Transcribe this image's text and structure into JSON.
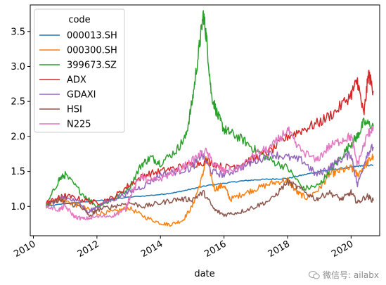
{
  "chart_data": {
    "type": "line",
    "xlabel": "date",
    "legend_title": "code",
    "legend_position": "top-left",
    "grid": false,
    "xlim": [
      2009.9,
      2020.9
    ],
    "ylim": [
      0.58,
      3.88
    ],
    "x_ticks": [
      {
        "value": 2010,
        "label": "2010"
      },
      {
        "value": 2012,
        "label": "2012"
      },
      {
        "value": 2014,
        "label": "2014"
      },
      {
        "value": 2016,
        "label": "2016"
      },
      {
        "value": 2018,
        "label": "2018"
      },
      {
        "value": 2020,
        "label": "2020"
      }
    ],
    "y_ticks": [
      {
        "value": 1.0,
        "label": "1.0"
      },
      {
        "value": 1.5,
        "label": "1.5"
      },
      {
        "value": 2.0,
        "label": "2.0"
      },
      {
        "value": 2.5,
        "label": "2.5"
      },
      {
        "value": 3.0,
        "label": "3.0"
      },
      {
        "value": 3.5,
        "label": "3.5"
      }
    ],
    "series": [
      {
        "name": "000013.SH",
        "color": "#1f77b4",
        "x": [
          2010.4,
          2011.0,
          2012.0,
          2013.0,
          2014.0,
          2014.5,
          2015.0,
          2015.5,
          2016.0,
          2016.5,
          2017.0,
          2017.5,
          2018.0,
          2018.5,
          2019.0,
          2019.5,
          2020.0,
          2020.3,
          2020.7
        ],
        "y": [
          1.0,
          1.04,
          1.08,
          1.13,
          1.17,
          1.2,
          1.25,
          1.3,
          1.33,
          1.36,
          1.38,
          1.39,
          1.4,
          1.45,
          1.5,
          1.53,
          1.56,
          1.58,
          1.59
        ]
      },
      {
        "name": "000300.SH",
        "color": "#ff7f0e",
        "x": [
          2010.4,
          2010.8,
          2011.0,
          2011.5,
          2012.0,
          2012.5,
          2013.0,
          2013.5,
          2014.0,
          2014.3,
          2014.7,
          2015.0,
          2015.3,
          2015.45,
          2015.7,
          2016.0,
          2016.2,
          2016.6,
          2017.0,
          2017.5,
          2018.0,
          2018.3,
          2018.6,
          2019.0,
          2019.3,
          2019.6,
          2020.0,
          2020.2,
          2020.5,
          2020.7
        ],
        "y": [
          1.0,
          1.12,
          1.08,
          1.0,
          0.9,
          0.92,
          0.98,
          0.85,
          0.76,
          0.74,
          0.8,
          1.0,
          1.4,
          1.7,
          1.25,
          1.3,
          1.1,
          1.18,
          1.25,
          1.33,
          1.38,
          1.2,
          1.12,
          1.25,
          1.45,
          1.5,
          1.55,
          1.45,
          1.62,
          1.72
        ]
      },
      {
        "name": "399673.SZ",
        "color": "#2ca02c",
        "x": [
          2010.4,
          2010.8,
          2011.0,
          2011.5,
          2012.0,
          2012.5,
          2013.0,
          2013.4,
          2013.7,
          2014.0,
          2014.5,
          2014.8,
          2015.0,
          2015.2,
          2015.35,
          2015.45,
          2015.6,
          2015.8,
          2016.0,
          2016.2,
          2016.6,
          2017.0,
          2017.5,
          2018.0,
          2018.5,
          2019.0,
          2019.3,
          2019.6,
          2020.0,
          2020.2,
          2020.4,
          2020.7
        ],
        "y": [
          1.0,
          1.38,
          1.45,
          1.2,
          1.0,
          1.1,
          1.25,
          1.6,
          1.7,
          1.62,
          1.8,
          2.0,
          2.5,
          3.2,
          3.75,
          3.4,
          2.6,
          2.3,
          2.1,
          2.05,
          1.95,
          1.8,
          1.65,
          1.55,
          1.25,
          1.3,
          1.5,
          1.65,
          1.9,
          2.0,
          2.2,
          2.15
        ]
      },
      {
        "name": "ADX",
        "color": "#d62728",
        "x": [
          2010.4,
          2010.8,
          2011.0,
          2011.5,
          2012.0,
          2012.5,
          2013.0,
          2013.5,
          2014.0,
          2014.5,
          2015.0,
          2015.5,
          2016.0,
          2016.5,
          2017.0,
          2017.5,
          2018.0,
          2018.5,
          2019.0,
          2019.5,
          2020.0,
          2020.2,
          2020.4,
          2020.55,
          2020.7
        ],
        "y": [
          1.05,
          1.12,
          1.15,
          1.1,
          1.05,
          1.12,
          1.3,
          1.45,
          1.5,
          1.55,
          1.6,
          1.65,
          1.55,
          1.6,
          1.7,
          1.8,
          2.0,
          2.1,
          2.2,
          2.35,
          2.6,
          2.8,
          2.3,
          2.9,
          2.65
        ]
      },
      {
        "name": "GDAXI",
        "color": "#9467bd",
        "x": [
          2010.4,
          2010.8,
          2011.0,
          2011.5,
          2011.7,
          2012.0,
          2012.5,
          2013.0,
          2013.5,
          2014.0,
          2014.5,
          2015.0,
          2015.3,
          2015.6,
          2016.0,
          2016.5,
          2017.0,
          2017.5,
          2018.0,
          2018.5,
          2018.9,
          2019.3,
          2019.6,
          2020.0,
          2020.2,
          2020.5,
          2020.7
        ],
        "y": [
          1.0,
          1.1,
          1.12,
          1.05,
          0.9,
          1.0,
          1.1,
          1.2,
          1.3,
          1.45,
          1.5,
          1.55,
          1.75,
          1.5,
          1.45,
          1.55,
          1.65,
          1.75,
          1.7,
          1.65,
          1.45,
          1.55,
          1.65,
          1.75,
          1.3,
          1.75,
          1.85
        ]
      },
      {
        "name": "HSI",
        "color": "#8c564b",
        "x": [
          2010.4,
          2010.8,
          2011.0,
          2011.5,
          2011.8,
          2012.0,
          2012.5,
          2013.0,
          2013.5,
          2014.0,
          2014.5,
          2015.0,
          2015.35,
          2015.7,
          2016.0,
          2016.5,
          2017.0,
          2017.5,
          2018.0,
          2018.4,
          2018.9,
          2019.3,
          2019.7,
          2020.0,
          2020.2,
          2020.5,
          2020.7
        ],
        "y": [
          1.0,
          1.1,
          1.05,
          1.0,
          0.85,
          0.95,
          1.0,
          1.05,
          1.0,
          1.05,
          1.1,
          1.1,
          1.2,
          0.95,
          0.88,
          0.92,
          1.0,
          1.1,
          1.35,
          1.25,
          1.1,
          1.2,
          1.1,
          1.2,
          1.05,
          1.15,
          1.08
        ]
      },
      {
        "name": "N225",
        "color": "#e377c2",
        "x": [
          2010.4,
          2010.8,
          2011.0,
          2011.3,
          2011.6,
          2012.0,
          2012.5,
          2012.9,
          2013.0,
          2013.4,
          2013.6,
          2014.0,
          2014.5,
          2015.0,
          2015.4,
          2015.7,
          2016.0,
          2016.5,
          2017.0,
          2017.5,
          2018.0,
          2018.3,
          2018.9,
          2019.3,
          2019.7,
          2020.0,
          2020.2,
          2020.5,
          2020.7
        ],
        "y": [
          1.0,
          0.95,
          1.0,
          0.85,
          0.82,
          0.85,
          0.87,
          0.95,
          1.1,
          1.45,
          1.35,
          1.4,
          1.5,
          1.65,
          1.8,
          1.6,
          1.5,
          1.55,
          1.75,
          1.85,
          2.1,
          1.85,
          1.65,
          1.85,
          1.95,
          2.0,
          1.6,
          2.0,
          2.15
        ]
      }
    ]
  },
  "watermark": {
    "text": "微信号: ailabx",
    "icon": "wechat-icon"
  }
}
